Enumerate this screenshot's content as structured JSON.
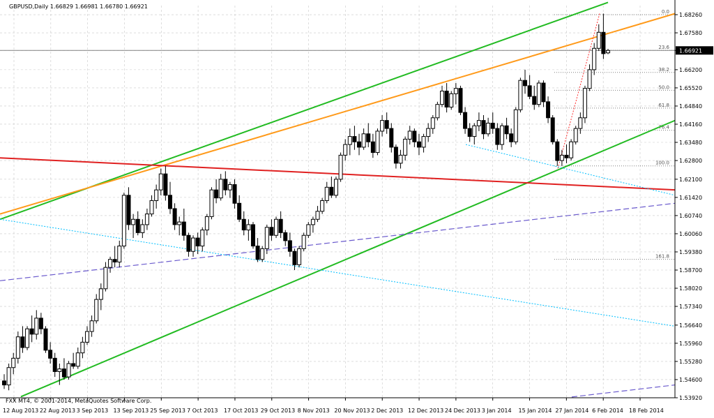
{
  "header": {
    "symbol_line": "GBPUSD,Daily  1.66829 1.66981 1.66780 1.66921"
  },
  "footer": {
    "copyright": "FXX MT4, © 2001-2014, MetaQuotes Software Corp."
  },
  "colors": {
    "background": "#ffffff",
    "grid": "#c8c8c8",
    "bull_candle": "#ffffff",
    "bear_candle": "#000000",
    "channel_green": "#22bb22",
    "trend_orange": "#ff9a1a",
    "trend_red": "#e02020",
    "dashed_blue": "#6a5acd",
    "dotted_cyan": "#00bfff",
    "fibo_dots": "#808080",
    "fibo_red": "#ff3030"
  },
  "chart_data": {
    "type": "candlestick",
    "symbol": "GBPUSD",
    "timeframe": "Daily",
    "last_price_label": "1.66921",
    "ylim": [
      1.5392,
      1.686
    ],
    "y_ticks": [
      "1.68260",
      "1.67580",
      "1.66920",
      "1.66200",
      "1.65520",
      "1.64840",
      "1.64160",
      "1.63480",
      "1.62800",
      "1.62100",
      "1.61420",
      "1.60740",
      "1.60060",
      "1.59380",
      "1.58700",
      "1.58020",
      "1.57340",
      "1.56640",
      "1.55960",
      "1.55280",
      "1.54600",
      "1.53920"
    ],
    "x_ticks": [
      "12 Aug 2013",
      "22 Aug 2013",
      "3 Sep 2013",
      "13 Sep 2013",
      "25 Sep 2013",
      "7 Oct 2013",
      "17 Oct 2013",
      "29 Oct 2013",
      "8 Nov 2013",
      "20 Nov 2013",
      "2 Dec 2013",
      "12 Dec 2013",
      "24 Dec 2013",
      "3 Jan 2014",
      "15 Jan 2014",
      "27 Jan 2014",
      "6 Feb 2014",
      "18 Feb 2014"
    ],
    "fibonacci_levels": [
      "0.0",
      "23.6",
      "38.2",
      "50.0",
      "61.8",
      "76.4",
      "100.0",
      "161.8"
    ],
    "candles_ohlc": [
      [
        1.5455,
        1.548,
        1.5425,
        1.544
      ],
      [
        1.544,
        1.552,
        1.542,
        1.5505
      ],
      [
        1.5505,
        1.556,
        1.548,
        1.554
      ],
      [
        1.554,
        1.564,
        1.552,
        1.562
      ],
      [
        1.562,
        1.566,
        1.556,
        1.558
      ],
      [
        1.558,
        1.566,
        1.557,
        1.565
      ],
      [
        1.565,
        1.57,
        1.56,
        1.563
      ],
      [
        1.563,
        1.572,
        1.561,
        1.569
      ],
      [
        1.569,
        1.571,
        1.563,
        1.565
      ],
      [
        1.565,
        1.566,
        1.556,
        1.557
      ],
      [
        1.557,
        1.56,
        1.552,
        1.554
      ],
      [
        1.554,
        1.556,
        1.547,
        1.549
      ],
      [
        1.549,
        1.552,
        1.544,
        1.55
      ],
      [
        1.55,
        1.554,
        1.546,
        1.547
      ],
      [
        1.547,
        1.553,
        1.546,
        1.552
      ],
      [
        1.552,
        1.556,
        1.55,
        1.551
      ],
      [
        1.551,
        1.558,
        1.55,
        1.556
      ],
      [
        1.556,
        1.562,
        1.554,
        1.56
      ],
      [
        1.56,
        1.566,
        1.559,
        1.564
      ],
      [
        1.564,
        1.57,
        1.562,
        1.568
      ],
      [
        1.568,
        1.578,
        1.567,
        1.576
      ],
      [
        1.576,
        1.582,
        1.572,
        1.58
      ],
      [
        1.58,
        1.59,
        1.579,
        1.588
      ],
      [
        1.588,
        1.592,
        1.586,
        1.591
      ],
      [
        1.591,
        1.596,
        1.588,
        1.59
      ],
      [
        1.59,
        1.598,
        1.588,
        1.596
      ],
      [
        1.596,
        1.616,
        1.595,
        1.615
      ],
      [
        1.615,
        1.618,
        1.602,
        1.604
      ],
      [
        1.604,
        1.608,
        1.599,
        1.606
      ],
      [
        1.606,
        1.609,
        1.6,
        1.601
      ],
      [
        1.601,
        1.606,
        1.599,
        1.604
      ],
      [
        1.604,
        1.61,
        1.602,
        1.608
      ],
      [
        1.608,
        1.615,
        1.607,
        1.613
      ],
      [
        1.613,
        1.619,
        1.61,
        1.617
      ],
      [
        1.617,
        1.625,
        1.615,
        1.623
      ],
      [
        1.623,
        1.626,
        1.613,
        1.615
      ],
      [
        1.615,
        1.62,
        1.608,
        1.61
      ],
      [
        1.61,
        1.612,
        1.602,
        1.604
      ],
      [
        1.604,
        1.607,
        1.6,
        1.605
      ],
      [
        1.605,
        1.61,
        1.598,
        1.6
      ],
      [
        1.6,
        1.601,
        1.592,
        1.594
      ],
      [
        1.594,
        1.6,
        1.592,
        1.599
      ],
      [
        1.599,
        1.601,
        1.593,
        1.596
      ],
      [
        1.596,
        1.603,
        1.594,
        1.602
      ],
      [
        1.602,
        1.608,
        1.6,
        1.607
      ],
      [
        1.607,
        1.618,
        1.606,
        1.617
      ],
      [
        1.617,
        1.621,
        1.612,
        1.614
      ],
      [
        1.614,
        1.623,
        1.613,
        1.621
      ],
      [
        1.621,
        1.624,
        1.615,
        1.617
      ],
      [
        1.617,
        1.62,
        1.614,
        1.619
      ],
      [
        1.619,
        1.621,
        1.61,
        1.612
      ],
      [
        1.612,
        1.615,
        1.605,
        1.606
      ],
      [
        1.606,
        1.609,
        1.6,
        1.602
      ],
      [
        1.602,
        1.606,
        1.598,
        1.604
      ],
      [
        1.604,
        1.605,
        1.595,
        1.596
      ],
      [
        1.596,
        1.599,
        1.59,
        1.591
      ],
      [
        1.591,
        1.596,
        1.59,
        1.595
      ],
      [
        1.595,
        1.604,
        1.593,
        1.603
      ],
      [
        1.603,
        1.606,
        1.598,
        1.6
      ],
      [
        1.6,
        1.607,
        1.599,
        1.606
      ],
      [
        1.606,
        1.609,
        1.599,
        1.601
      ],
      [
        1.601,
        1.602,
        1.596,
        1.598
      ],
      [
        1.598,
        1.601,
        1.592,
        1.594
      ],
      [
        1.594,
        1.595,
        1.587,
        1.589
      ],
      [
        1.589,
        1.596,
        1.588,
        1.595
      ],
      [
        1.595,
        1.601,
        1.594,
        1.6
      ],
      [
        1.6,
        1.605,
        1.599,
        1.604
      ],
      [
        1.604,
        1.607,
        1.601,
        1.606
      ],
      [
        1.606,
        1.611,
        1.605,
        1.609
      ],
      [
        1.609,
        1.614,
        1.608,
        1.613
      ],
      [
        1.613,
        1.62,
        1.612,
        1.618
      ],
      [
        1.618,
        1.622,
        1.614,
        1.615
      ],
      [
        1.615,
        1.622,
        1.614,
        1.621
      ],
      [
        1.621,
        1.631,
        1.62,
        1.63
      ],
      [
        1.63,
        1.636,
        1.628,
        1.634
      ],
      [
        1.634,
        1.64,
        1.63,
        1.637
      ],
      [
        1.637,
        1.641,
        1.632,
        1.635
      ],
      [
        1.635,
        1.638,
        1.63,
        1.633
      ],
      [
        1.633,
        1.64,
        1.632,
        1.638
      ],
      [
        1.638,
        1.642,
        1.633,
        1.635
      ],
      [
        1.635,
        1.638,
        1.629,
        1.631
      ],
      [
        1.631,
        1.64,
        1.63,
        1.639
      ],
      [
        1.639,
        1.645,
        1.637,
        1.643
      ],
      [
        1.643,
        1.646,
        1.638,
        1.64
      ],
      [
        1.64,
        1.642,
        1.631,
        1.633
      ],
      [
        1.633,
        1.634,
        1.625,
        1.627
      ],
      [
        1.627,
        1.632,
        1.625,
        1.63
      ],
      [
        1.63,
        1.637,
        1.628,
        1.636
      ],
      [
        1.636,
        1.641,
        1.634,
        1.639
      ],
      [
        1.639,
        1.64,
        1.633,
        1.635
      ],
      [
        1.635,
        1.638,
        1.63,
        1.633
      ],
      [
        1.633,
        1.638,
        1.631,
        1.637
      ],
      [
        1.637,
        1.642,
        1.635,
        1.64
      ],
      [
        1.64,
        1.645,
        1.638,
        1.644
      ],
      [
        1.644,
        1.65,
        1.643,
        1.649
      ],
      [
        1.649,
        1.656,
        1.648,
        1.654
      ],
      [
        1.654,
        1.657,
        1.646,
        1.648
      ],
      [
        1.648,
        1.654,
        1.647,
        1.653
      ],
      [
        1.653,
        1.657,
        1.649,
        1.655
      ],
      [
        1.655,
        1.656,
        1.645,
        1.646
      ],
      [
        1.646,
        1.648,
        1.638,
        1.64
      ],
      [
        1.64,
        1.642,
        1.635,
        1.637
      ],
      [
        1.637,
        1.642,
        1.634,
        1.641
      ],
      [
        1.641,
        1.646,
        1.639,
        1.643
      ],
      [
        1.643,
        1.645,
        1.636,
        1.638
      ],
      [
        1.638,
        1.644,
        1.637,
        1.642
      ],
      [
        1.642,
        1.646,
        1.638,
        1.64
      ],
      [
        1.64,
        1.642,
        1.632,
        1.634
      ],
      [
        1.634,
        1.642,
        1.632,
        1.641
      ],
      [
        1.641,
        1.644,
        1.636,
        1.638
      ],
      [
        1.638,
        1.64,
        1.633,
        1.635
      ],
      [
        1.635,
        1.648,
        1.634,
        1.647
      ],
      [
        1.647,
        1.659,
        1.646,
        1.658
      ],
      [
        1.658,
        1.662,
        1.653,
        1.656
      ],
      [
        1.656,
        1.66,
        1.651,
        1.652
      ],
      [
        1.652,
        1.656,
        1.647,
        1.649
      ],
      [
        1.649,
        1.658,
        1.648,
        1.657
      ],
      [
        1.657,
        1.658,
        1.648,
        1.65
      ],
      [
        1.65,
        1.652,
        1.642,
        1.644
      ],
      [
        1.644,
        1.645,
        1.634,
        1.635
      ],
      [
        1.635,
        1.636,
        1.626,
        1.628
      ],
      [
        1.628,
        1.632,
        1.626,
        1.63
      ],
      [
        1.63,
        1.634,
        1.627,
        1.629
      ],
      [
        1.629,
        1.636,
        1.628,
        1.635
      ],
      [
        1.635,
        1.641,
        1.634,
        1.64
      ],
      [
        1.64,
        1.646,
        1.638,
        1.644
      ],
      [
        1.644,
        1.656,
        1.642,
        1.655
      ],
      [
        1.655,
        1.664,
        1.654,
        1.662
      ],
      [
        1.662,
        1.672,
        1.66,
        1.67
      ],
      [
        1.67,
        1.679,
        1.669,
        1.676
      ],
      [
        1.676,
        1.683,
        1.666,
        1.668
      ],
      [
        1.6683,
        1.6698,
        1.6678,
        1.6692
      ]
    ]
  }
}
